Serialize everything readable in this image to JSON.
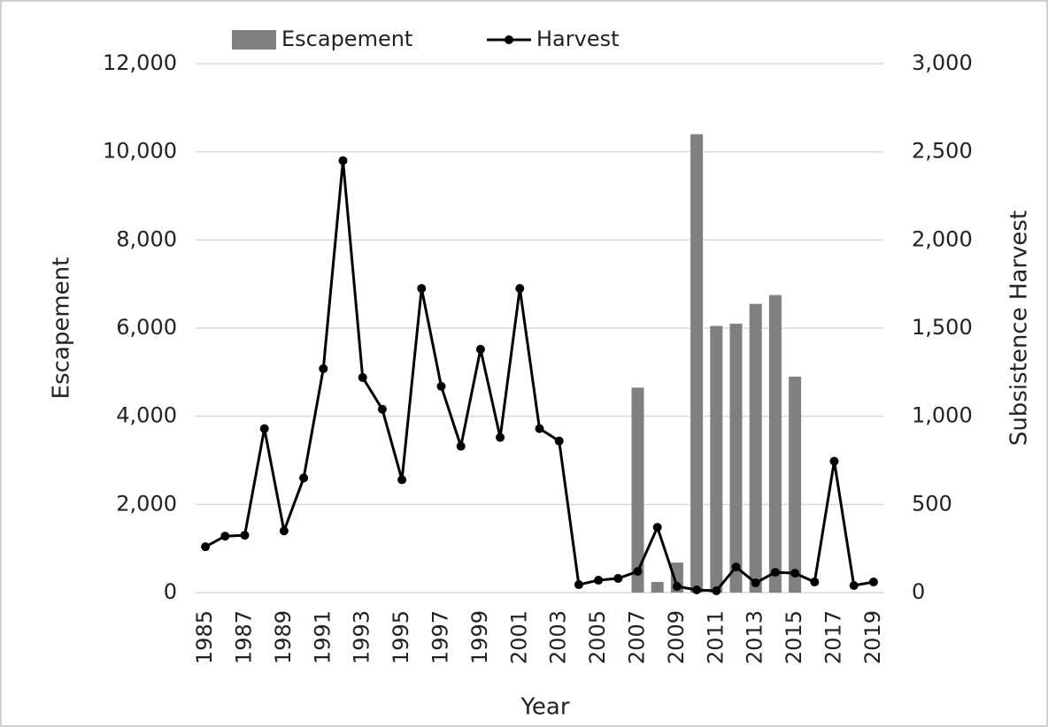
{
  "chart_data": {
    "type": "bar",
    "x_label": "Year",
    "y_label": "Escapement",
    "y2_label": "Subsistence Harvest",
    "x": [
      1985,
      1986,
      1987,
      1988,
      1989,
      1990,
      1991,
      1992,
      1993,
      1994,
      1995,
      1996,
      1997,
      1998,
      1999,
      2000,
      2001,
      2002,
      2003,
      2004,
      2005,
      2006,
      2007,
      2008,
      2009,
      2010,
      2011,
      2012,
      2013,
      2014,
      2015,
      2016,
      2017,
      2018,
      2019
    ],
    "xlim": [
      1984.5,
      2019.5
    ],
    "xticks": [
      1985,
      1987,
      1989,
      1991,
      1993,
      1995,
      1997,
      1999,
      2001,
      2003,
      2005,
      2007,
      2009,
      2011,
      2013,
      2015,
      2017,
      2019
    ],
    "ylim": [
      0,
      12000
    ],
    "yticks": [
      0,
      {
        "value": 2000,
        "label": "2,000"
      },
      {
        "value": 4000,
        "label": "4,000"
      },
      {
        "value": 6000,
        "label": "6,000"
      },
      {
        "value": 8000,
        "label": "8,000"
      },
      {
        "value": 10000,
        "label": "10,000"
      },
      {
        "value": 12000,
        "label": "12,000"
      }
    ],
    "y2lim": [
      0,
      3000
    ],
    "y2ticks": [
      0,
      500,
      {
        "value": 1000,
        "label": "1,000"
      },
      {
        "value": 1500,
        "label": "1,500"
      },
      {
        "value": 2000,
        "label": "2,000"
      },
      {
        "value": 2500,
        "label": "2,500"
      },
      {
        "value": 3000,
        "label": "3,000"
      }
    ],
    "grid": true,
    "legend": "top",
    "series": [
      {
        "name": "Escapement",
        "type": "bar",
        "color": "#808080",
        "values": [
          null,
          null,
          null,
          null,
          null,
          null,
          null,
          null,
          null,
          null,
          null,
          null,
          null,
          null,
          null,
          null,
          null,
          null,
          null,
          null,
          null,
          null,
          4650,
          240,
          680,
          10400,
          6050,
          6100,
          6550,
          6750,
          4900,
          null,
          null,
          null,
          null
        ]
      },
      {
        "name": "Harvest",
        "type": "line",
        "axis": "y2",
        "color": "#000000",
        "values": [
          260,
          320,
          325,
          930,
          350,
          650,
          1270,
          2450,
          1220,
          1040,
          640,
          1725,
          1170,
          830,
          1380,
          880,
          1725,
          930,
          860,
          45,
          70,
          80,
          120,
          370,
          35,
          15,
          10,
          145,
          55,
          115,
          110,
          60,
          745,
          40,
          60
        ]
      }
    ]
  }
}
